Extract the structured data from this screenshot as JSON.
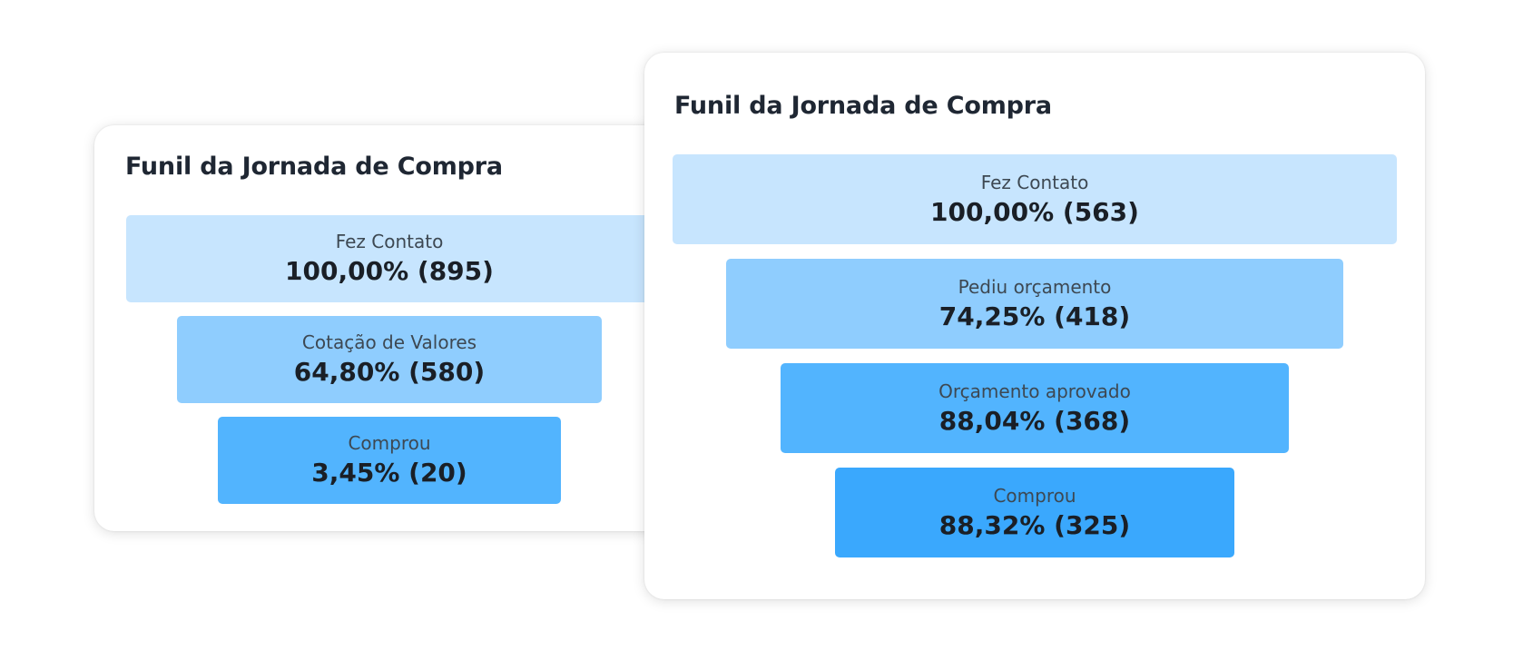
{
  "chart_data": [
    {
      "type": "funnel",
      "title": "Funil da Jornada de Compra",
      "stages": [
        {
          "label": "Fez Contato",
          "percent": 100.0,
          "count": 895,
          "value_text": "100,00% (895)",
          "color": "#c7e5fe"
        },
        {
          "label": "Cotação de Valores",
          "percent": 64.8,
          "count": 580,
          "value_text": "64,80% (580)",
          "color": "#8fcdfe"
        },
        {
          "label": "Comprou",
          "percent": 3.45,
          "count": 20,
          "value_text": "3,45% (20)",
          "color": "#52b4fe"
        }
      ]
    },
    {
      "type": "funnel",
      "title": "Funil da Jornada de Compra",
      "stages": [
        {
          "label": "Fez Contato",
          "percent": 100.0,
          "count": 563,
          "value_text": "100,00% (563)",
          "color": "#c7e5fe"
        },
        {
          "label": "Pediu orçamento",
          "percent": 74.25,
          "count": 418,
          "value_text": "74,25% (418)",
          "color": "#8fcdfe"
        },
        {
          "label": "Orçamento aprovado",
          "percent": 88.04,
          "count": 368,
          "value_text": "88,04% (368)",
          "color": "#52b4fe"
        },
        {
          "label": "Comprou",
          "percent": 88.32,
          "count": 325,
          "value_text": "88,32% (325)",
          "color": "#3aa8fd"
        }
      ]
    }
  ]
}
